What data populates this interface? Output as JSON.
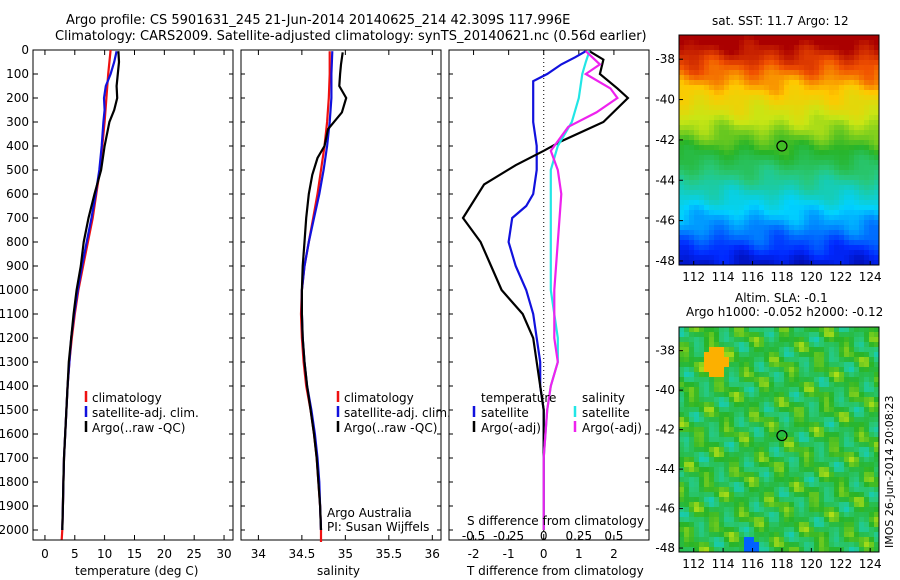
{
  "header": {
    "line1": "Argo profile: CS 5901631_245 21-Jun-2014 20140625_214 42.309S 117.996E",
    "line2": "Climatology: CARS2009. Satellite-adjusted climatology: synTS_20140621.nc (0.56d earlier)"
  },
  "credit": "IMOS 26-Jun-2014 20:08:23",
  "colors": {
    "climatology": "#ee1111",
    "satellite": "#1111dd",
    "argo": "#000000",
    "salinity_sat": "#22e6e6",
    "salinity_argo": "#ee22ee"
  },
  "chart_data": [
    {
      "type": "line",
      "xlabel": "temperature (deg C)",
      "ylabel": "",
      "xlim": [
        -2,
        31.5
      ],
      "ylim": [
        2050,
        0
      ],
      "xticks": [
        0,
        5,
        10,
        15,
        20,
        25,
        30
      ],
      "yticks": [
        0,
        100,
        200,
        300,
        400,
        500,
        600,
        700,
        800,
        900,
        1000,
        1100,
        1200,
        1300,
        1400,
        1500,
        1600,
        1700,
        1800,
        1900,
        2000
      ],
      "legend": [
        "climatology",
        "satellite-adj. clim.",
        "Argo(..raw -QC)"
      ],
      "series": [
        {
          "name": "climatology",
          "color_key": "climatology",
          "points": [
            [
              11,
              0
            ],
            [
              10.8,
              50
            ],
            [
              10.6,
              100
            ],
            [
              10.3,
              200
            ],
            [
              10,
              300
            ],
            [
              9.6,
              400
            ],
            [
              9.2,
              500
            ],
            [
              8.6,
              600
            ],
            [
              8,
              700
            ],
            [
              7.2,
              800
            ],
            [
              6.4,
              900
            ],
            [
              5.6,
              1000
            ],
            [
              5,
              1100
            ],
            [
              4.5,
              1200
            ],
            [
              4.1,
              1300
            ],
            [
              3.8,
              1400
            ],
            [
              3.6,
              1500
            ],
            [
              3.4,
              1600
            ],
            [
              3.2,
              1700
            ],
            [
              3.1,
              1800
            ],
            [
              3,
              1900
            ],
            [
              2.9,
              2000
            ],
            [
              2.8,
              2040
            ]
          ]
        },
        {
          "name": "satellite-adj. clim.",
          "color_key": "satellite",
          "points": [
            [
              12,
              5
            ],
            [
              11.6,
              50
            ],
            [
              11,
              100
            ],
            [
              10.2,
              150
            ],
            [
              9.9,
              200
            ],
            [
              10,
              250
            ],
            [
              9.8,
              300
            ],
            [
              9.5,
              400
            ],
            [
              9.1,
              500
            ],
            [
              8.5,
              600
            ],
            [
              7.8,
              700
            ],
            [
              7,
              800
            ],
            [
              6.2,
              900
            ],
            [
              5.5,
              1000
            ],
            [
              4.9,
              1100
            ],
            [
              4.4,
              1200
            ],
            [
              4.1,
              1300
            ],
            [
              3.8,
              1400
            ],
            [
              3.6,
              1500
            ],
            [
              3.4,
              1600
            ],
            [
              3.2,
              1700
            ],
            [
              3.1,
              1800
            ],
            [
              3,
              1900
            ],
            [
              2.9,
              2000
            ]
          ]
        },
        {
          "name": "Argo(..raw -QC)",
          "color_key": "argo",
          "points": [
            [
              12.3,
              5
            ],
            [
              12.4,
              50
            ],
            [
              12.2,
              100
            ],
            [
              12,
              150
            ],
            [
              12.1,
              200
            ],
            [
              11.6,
              250
            ],
            [
              10.8,
              300
            ],
            [
              10,
              400
            ],
            [
              9.4,
              500
            ],
            [
              8.3,
              600
            ],
            [
              7.3,
              700
            ],
            [
              6.5,
              800
            ],
            [
              6,
              900
            ],
            [
              5.3,
              1000
            ],
            [
              4.8,
              1100
            ],
            [
              4.4,
              1200
            ],
            [
              4,
              1300
            ],
            [
              3.8,
              1400
            ],
            [
              3.6,
              1500
            ],
            [
              3.4,
              1600
            ],
            [
              3.2,
              1700
            ],
            [
              3.1,
              1800
            ],
            [
              3,
              1900
            ],
            [
              2.9,
              2000
            ]
          ]
        }
      ]
    },
    {
      "type": "line",
      "xlabel": "salinity",
      "ylabel": "",
      "xlim": [
        33.8,
        36.1
      ],
      "ylim": [
        2050,
        0
      ],
      "xticks": [
        34,
        34.5,
        35,
        35.5,
        36
      ],
      "legend": [
        "climatology",
        "satellite-adj. clim.",
        "Argo(..raw -QC)"
      ],
      "annotation": [
        "Argo Australia",
        "PI: Susan Wijffels"
      ],
      "series": [
        {
          "name": "climatology",
          "color_key": "climatology",
          "points": [
            [
              34.82,
              5
            ],
            [
              34.82,
              100
            ],
            [
              34.81,
              200
            ],
            [
              34.79,
              300
            ],
            [
              34.76,
              400
            ],
            [
              34.72,
              500
            ],
            [
              34.68,
              600
            ],
            [
              34.63,
              700
            ],
            [
              34.58,
              800
            ],
            [
              34.53,
              900
            ],
            [
              34.5,
              1000
            ],
            [
              34.49,
              1100
            ],
            [
              34.5,
              1200
            ],
            [
              34.52,
              1300
            ],
            [
              34.55,
              1400
            ],
            [
              34.6,
              1500
            ],
            [
              34.64,
              1600
            ],
            [
              34.67,
              1700
            ],
            [
              34.69,
              1800
            ],
            [
              34.71,
              1900
            ],
            [
              34.72,
              2000
            ],
            [
              34.72,
              2050
            ]
          ]
        },
        {
          "name": "satellite-adj. clim.",
          "color_key": "satellite",
          "points": [
            [
              34.85,
              5
            ],
            [
              34.84,
              100
            ],
            [
              34.84,
              200
            ],
            [
              34.82,
              300
            ],
            [
              34.79,
              400
            ],
            [
              34.75,
              500
            ],
            [
              34.7,
              600
            ],
            [
              34.64,
              700
            ],
            [
              34.58,
              800
            ],
            [
              34.53,
              900
            ],
            [
              34.5,
              1000
            ],
            [
              34.5,
              1100
            ],
            [
              34.51,
              1200
            ],
            [
              34.53,
              1300
            ],
            [
              34.56,
              1400
            ],
            [
              34.61,
              1500
            ],
            [
              34.65,
              1600
            ],
            [
              34.68,
              1700
            ],
            [
              34.7,
              1800
            ],
            [
              34.71,
              1900
            ],
            [
              34.72,
              2000
            ]
          ]
        },
        {
          "name": "Argo(..raw -QC)",
          "color_key": "argo",
          "points": [
            [
              34.97,
              10
            ],
            [
              34.95,
              60
            ],
            [
              34.94,
              100
            ],
            [
              34.93,
              150
            ],
            [
              35.01,
              200
            ],
            [
              34.96,
              260
            ],
            [
              34.8,
              330
            ],
            [
              34.76,
              400
            ],
            [
              34.68,
              450
            ],
            [
              34.62,
              520
            ],
            [
              34.58,
              600
            ],
            [
              34.55,
              700
            ],
            [
              34.53,
              800
            ],
            [
              34.51,
              900
            ],
            [
              34.5,
              1000
            ],
            [
              34.5,
              1100
            ],
            [
              34.51,
              1200
            ],
            [
              34.53,
              1300
            ],
            [
              34.56,
              1400
            ],
            [
              34.6,
              1500
            ],
            [
              34.64,
              1600
            ],
            [
              34.67,
              1700
            ],
            [
              34.69,
              1800
            ],
            [
              34.71,
              1900
            ],
            [
              34.72,
              2000
            ]
          ]
        }
      ]
    },
    {
      "type": "line",
      "xlabel": "T difference from climatology",
      "xlabel_top": "S difference from climatology",
      "xlim": [
        -2.7,
        3.0
      ],
      "ylim": [
        2050,
        0
      ],
      "xticks": [
        -2,
        -1,
        0,
        1,
        2
      ],
      "xticks_s": [
        "-0.5",
        "-0.25",
        "0",
        "0.25",
        "0.5"
      ],
      "legend_left_title": "temperature",
      "legend_right_title": "salinity",
      "legend_left": [
        "satellite",
        "Argo(-adj)"
      ],
      "legend_right": [
        "satellite",
        "Argo(-adj)"
      ],
      "series": [
        {
          "name": "temperature satellite",
          "color_key": "satellite",
          "points": [
            [
              1.2,
              5
            ],
            [
              0.9,
              30
            ],
            [
              0.5,
              60
            ],
            [
              0.1,
              100
            ],
            [
              -0.3,
              130
            ],
            [
              -0.3,
              200
            ],
            [
              -0.3,
              300
            ],
            [
              -0.2,
              400
            ],
            [
              -0.2,
              500
            ],
            [
              -0.3,
              600
            ],
            [
              -0.5,
              650
            ],
            [
              -0.9,
              700
            ],
            [
              -1,
              800
            ],
            [
              -0.8,
              900
            ],
            [
              -0.5,
              1000
            ],
            [
              -0.3,
              1100
            ],
            [
              -0.2,
              1200
            ],
            [
              -0.1,
              1300
            ],
            [
              -0.1,
              1400
            ],
            [
              0,
              1500
            ],
            [
              0,
              1600
            ],
            [
              0,
              1700
            ],
            [
              0,
              1800
            ],
            [
              0,
              1900
            ],
            [
              0,
              2000
            ]
          ]
        },
        {
          "name": "temperature Argo(-adj)",
          "color_key": "argo",
          "points": [
            [
              1.3,
              5
            ],
            [
              1.7,
              40
            ],
            [
              1.6,
              100
            ],
            [
              2.1,
              160
            ],
            [
              2.4,
              200
            ],
            [
              1.7,
              300
            ],
            [
              0.5,
              380
            ],
            [
              0,
              420
            ],
            [
              -0.8,
              480
            ],
            [
              -1.7,
              560
            ],
            [
              -2.3,
              700
            ],
            [
              -1.8,
              800
            ],
            [
              -1.5,
              900
            ],
            [
              -1.2,
              1000
            ],
            [
              -0.6,
              1100
            ],
            [
              -0.3,
              1200
            ],
            [
              -0.2,
              1300
            ],
            [
              -0.1,
              1400
            ],
            [
              0,
              1500
            ],
            [
              0,
              1600
            ],
            [
              0,
              1700
            ],
            [
              0,
              1800
            ],
            [
              0,
              1900
            ],
            [
              0,
              2000
            ]
          ]
        },
        {
          "name": "salinity satellite",
          "color_key": "salinity_sat",
          "points": [
            [
              1.3,
              5
            ],
            [
              1.2,
              50
            ],
            [
              1.1,
              100
            ],
            [
              1,
              200
            ],
            [
              0.8,
              300
            ],
            [
              0.4,
              400
            ],
            [
              0.2,
              500
            ],
            [
              0.2,
              700
            ],
            [
              0.2,
              900
            ],
            [
              0.2,
              1000
            ],
            [
              0.3,
              1100
            ],
            [
              0.4,
              1200
            ],
            [
              0.4,
              1300
            ],
            [
              0.2,
              1400
            ],
            [
              0.1,
              1500
            ],
            [
              0,
              1700
            ],
            [
              0,
              1900
            ],
            [
              0,
              2000
            ]
          ]
        },
        {
          "name": "salinity Argo(-adj)",
          "color_key": "salinity_argo",
          "points": [
            [
              1.2,
              5
            ],
            [
              1.6,
              60
            ],
            [
              1.2,
              100
            ],
            [
              1.9,
              160
            ],
            [
              2.1,
              200
            ],
            [
              1.5,
              260
            ],
            [
              0.7,
              320
            ],
            [
              0.2,
              420
            ],
            [
              0.4,
              500
            ],
            [
              0.5,
              600
            ],
            [
              0.4,
              800
            ],
            [
              0.3,
              1000
            ],
            [
              0.3,
              1200
            ],
            [
              0.4,
              1300
            ],
            [
              0.2,
              1400
            ],
            [
              0.1,
              1500
            ],
            [
              0,
              1700
            ],
            [
              0,
              2000
            ]
          ]
        }
      ]
    },
    {
      "type": "heatmap",
      "title": "sat. SST: 11.7 Argo: 12",
      "xlim": [
        111,
        124.6
      ],
      "ylim": [
        -48.2,
        -36.8
      ],
      "xticks": [
        112,
        114,
        116,
        118,
        120,
        122,
        124
      ],
      "yticks": [
        -38,
        -40,
        -42,
        -44,
        -46,
        -48
      ],
      "marker": [
        118,
        -42.3
      ]
    },
    {
      "type": "heatmap",
      "title": "Altim. SLA: -0.1",
      "subtitle": "Argo h1000: -0.052 h2000: -0.12",
      "xlim": [
        111,
        124.6
      ],
      "ylim": [
        -48.2,
        -36.8
      ],
      "xticks": [
        112,
        114,
        116,
        118,
        120,
        122,
        124
      ],
      "yticks": [
        -38,
        -40,
        -42,
        -44,
        -46,
        -48
      ],
      "marker": [
        118,
        -42.3
      ]
    }
  ]
}
